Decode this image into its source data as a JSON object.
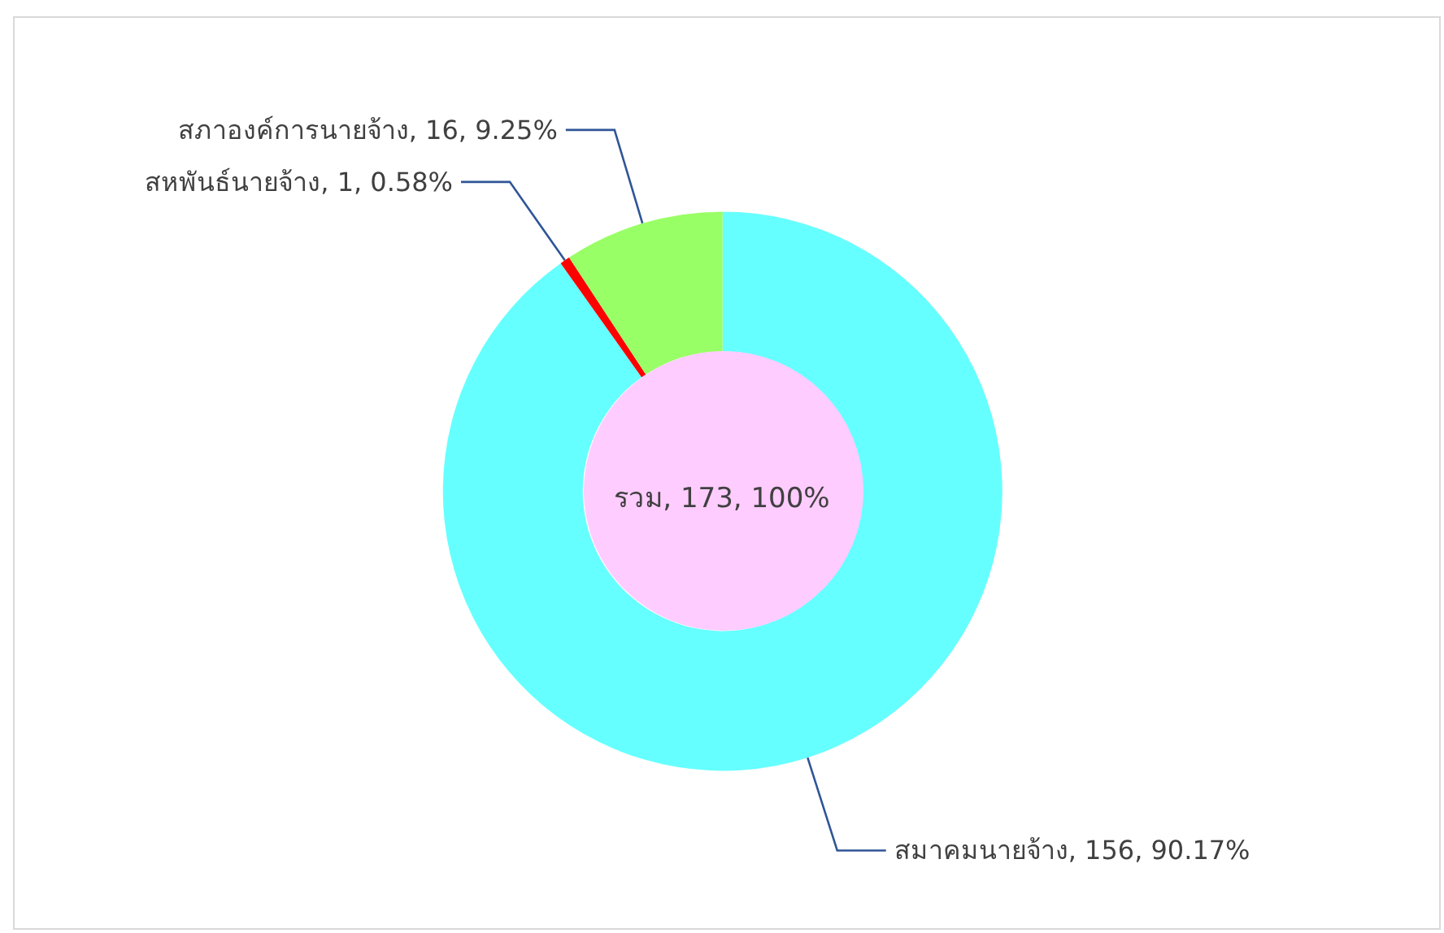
{
  "chart_data": {
    "type": "donut",
    "categories": [
      "สมาคมนายจ้าง",
      "สหพันธ์นายจ้าง",
      "สภาองค์การนายจ้าง"
    ],
    "values": [
      156,
      1,
      16
    ],
    "colors": [
      "#66ffff",
      "#ff0000",
      "#99ff66"
    ],
    "value_labels": [
      "156, 90.17%",
      "1, 0.58%",
      "16, 9.25%"
    ],
    "annotations": [
      "รวม, 173, 100%"
    ],
    "legend": false
  }
}
